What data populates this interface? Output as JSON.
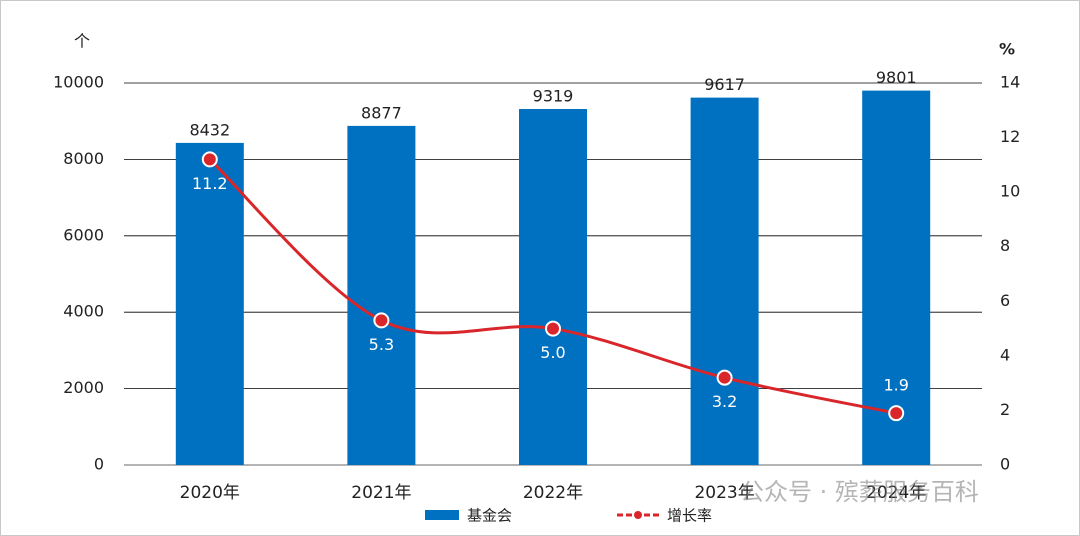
{
  "chart_data": {
    "type": "bar-line",
    "y_label": "个",
    "y2_label": "%",
    "categories": [
      "2020年",
      "2021年",
      "2022年",
      "2023年",
      "2024年"
    ],
    "series": [
      {
        "name": "基金会",
        "type": "bar",
        "color": "#0070c0",
        "values": [
          8432,
          8877,
          9319,
          9617,
          9801
        ]
      },
      {
        "name": "增长率",
        "type": "line",
        "axis": "y2",
        "color": "#d9262b",
        "values": [
          11.2,
          5.3,
          5.0,
          3.2,
          1.9
        ],
        "value_labels": [
          "11.2",
          "5.3",
          "5.0",
          "3.2",
          "1.9"
        ]
      }
    ],
    "ylim": [
      0,
      10000
    ],
    "yticks": [
      0,
      2000,
      4000,
      6000,
      8000,
      10000
    ],
    "y2lim": [
      0,
      14
    ],
    "y2ticks": [
      0,
      2,
      4,
      6,
      8,
      10,
      12,
      14
    ],
    "grid": true,
    "legend": "bottom",
    "watermark": "公众号 · 殡葬服务百科"
  }
}
